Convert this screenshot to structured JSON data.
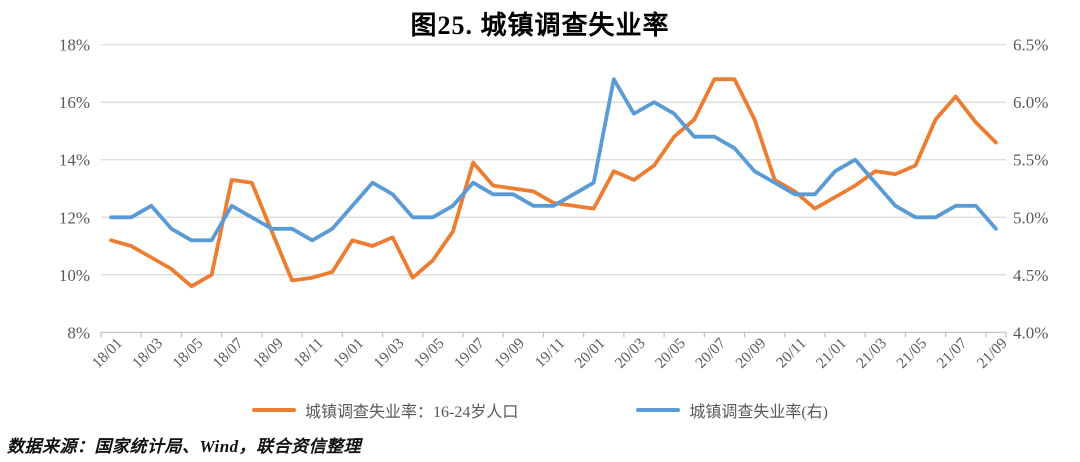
{
  "title": {
    "text": "图25.  城镇调查失业率"
  },
  "source_note": "数据来源：国家统计局、Wind，联合资信整理",
  "legend": {
    "items": [
      {
        "label": "城镇调查失业率：16-24岁人口",
        "color": "#ED7D31"
      },
      {
        "label": "城镇调查失业率(右)",
        "color": "#5B9BD5"
      }
    ]
  },
  "colors": {
    "gridline": "#D9D9D9",
    "axis_line": "#BFBFBF",
    "tick_mark": "#BFBFBF",
    "axis_label": "#595959",
    "series_youth": "#ED7D31",
    "series_total": "#5B9BD5"
  },
  "chart_data": {
    "type": "line",
    "title": "图25. 城镇调查失业率",
    "grid": true,
    "legend_position": "bottom",
    "categories": [
      "18/01",
      "18/02",
      "18/03",
      "18/04",
      "18/05",
      "18/06",
      "18/07",
      "18/08",
      "18/09",
      "18/10",
      "18/11",
      "18/12",
      "19/01",
      "19/02",
      "19/03",
      "19/04",
      "19/05",
      "19/06",
      "19/07",
      "19/08",
      "19/09",
      "19/10",
      "19/11",
      "19/12",
      "20/01",
      "20/02",
      "20/03",
      "20/04",
      "20/05",
      "20/06",
      "20/07",
      "20/08",
      "20/09",
      "20/10",
      "20/11",
      "20/12",
      "21/01",
      "21/02",
      "21/03",
      "21/04",
      "21/05",
      "21/06",
      "21/07",
      "21/08",
      "21/09"
    ],
    "x_tick_label_every": 2,
    "x_tick_labels_shown": [
      "18/01",
      "18/03",
      "18/05",
      "18/07",
      "18/09",
      "18/11",
      "19/01",
      "19/03",
      "19/05",
      "19/07",
      "19/09",
      "19/11",
      "20/01",
      "20/03",
      "20/05",
      "20/07",
      "20/09",
      "20/11",
      "21/01",
      "21/03",
      "21/05",
      "21/07",
      "21/09"
    ],
    "left_axis": {
      "min": 8,
      "max": 18,
      "step": 2,
      "tick_labels": [
        "18%",
        "16%",
        "14%",
        "12%",
        "10%",
        "8%"
      ]
    },
    "right_axis": {
      "min": 4.0,
      "max": 6.5,
      "step": 0.5,
      "tick_labels": [
        "6.5%",
        "6.0%",
        "5.5%",
        "5.0%",
        "4.5%",
        "4.0%"
      ]
    },
    "series": [
      {
        "name": "城镇调查失业率：16-24岁人口",
        "axis": "left",
        "color": "#ED7D31",
        "values": [
          11.2,
          11.0,
          10.6,
          10.2,
          9.6,
          10.0,
          13.3,
          13.2,
          11.5,
          9.8,
          9.9,
          10.1,
          11.2,
          11.0,
          11.3,
          9.9,
          10.5,
          11.5,
          13.9,
          13.1,
          13.0,
          12.9,
          12.5,
          12.4,
          12.3,
          13.6,
          13.3,
          13.8,
          14.8,
          15.4,
          16.8,
          16.8,
          15.4,
          13.3,
          12.9,
          12.3,
          12.7,
          13.1,
          13.6,
          13.5,
          13.8,
          15.4,
          16.2,
          15.3,
          14.6
        ]
      },
      {
        "name": "城镇调查失业率(右)",
        "axis": "right",
        "color": "#5B9BD5",
        "values": [
          5.0,
          5.0,
          5.1,
          4.9,
          4.8,
          4.8,
          5.1,
          5.0,
          4.9,
          4.9,
          4.8,
          4.9,
          5.1,
          5.3,
          5.2,
          5.0,
          5.0,
          5.1,
          5.3,
          5.2,
          5.2,
          5.1,
          5.1,
          5.2,
          5.3,
          6.2,
          5.9,
          6.0,
          5.9,
          5.7,
          5.7,
          5.6,
          5.4,
          5.3,
          5.2,
          5.2,
          5.4,
          5.5,
          5.3,
          5.1,
          5.0,
          5.0,
          5.1,
          5.1,
          4.9
        ]
      }
    ]
  }
}
